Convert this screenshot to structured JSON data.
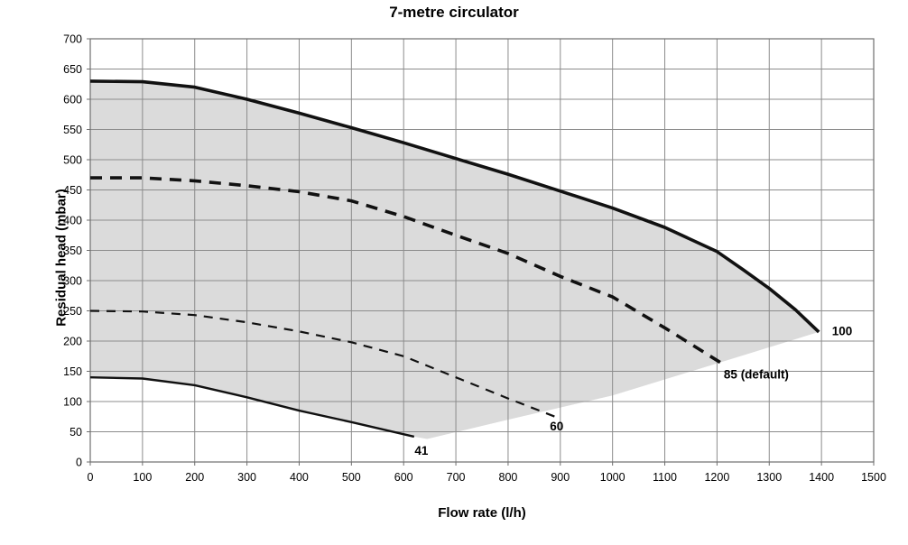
{
  "title": "7-metre circulator",
  "chart_data": {
    "type": "area",
    "title": "7-metre circulator",
    "xlabel": "Flow rate (l/h)",
    "ylabel": "Residual head (mbar)",
    "xlim": [
      0,
      1500
    ],
    "ylim": [
      0,
      700
    ],
    "x_ticks": [
      0,
      100,
      200,
      300,
      400,
      500,
      600,
      700,
      800,
      900,
      1000,
      1100,
      1200,
      1300,
      1400,
      1500
    ],
    "y_ticks": [
      0,
      50,
      100,
      150,
      200,
      250,
      300,
      350,
      400,
      450,
      500,
      550,
      600,
      650,
      700
    ],
    "grid": true,
    "legend": "none",
    "colors": {
      "region_fill": "#dbdbdb",
      "grid": "#8c8c8c",
      "plot_border": "#6e6e6e",
      "curve": "#111111",
      "text": "#000000"
    },
    "region": {
      "name": "operating-envelope",
      "points": [
        [
          0,
          630
        ],
        [
          100,
          629
        ],
        [
          200,
          620
        ],
        [
          300,
          600
        ],
        [
          400,
          577
        ],
        [
          500,
          553
        ],
        [
          600,
          528
        ],
        [
          700,
          502
        ],
        [
          800,
          476
        ],
        [
          900,
          448
        ],
        [
          1000,
          420
        ],
        [
          1100,
          388
        ],
        [
          1200,
          348
        ],
        [
          1300,
          287
        ],
        [
          1395,
          215
        ],
        [
          1200,
          163
        ],
        [
          1000,
          110
        ],
        [
          800,
          70
        ],
        [
          645,
          38
        ],
        [
          620,
          42
        ],
        [
          500,
          66
        ],
        [
          400,
          85
        ],
        [
          300,
          107
        ],
        [
          200,
          127
        ],
        [
          100,
          138
        ],
        [
          0,
          140
        ]
      ]
    },
    "series": [
      {
        "name": "speed-100",
        "label": "100",
        "style": "solid-thick",
        "points": [
          [
            0,
            630
          ],
          [
            100,
            629
          ],
          [
            200,
            620
          ],
          [
            300,
            600
          ],
          [
            400,
            577
          ],
          [
            500,
            553
          ],
          [
            600,
            528
          ],
          [
            700,
            502
          ],
          [
            800,
            476
          ],
          [
            900,
            448
          ],
          [
            1000,
            420
          ],
          [
            1100,
            388
          ],
          [
            1200,
            348
          ],
          [
            1250,
            318
          ],
          [
            1300,
            287
          ],
          [
            1350,
            252
          ],
          [
            1395,
            215
          ]
        ]
      },
      {
        "name": "speed-85",
        "label": "85 (default)",
        "style": "dashed-thick",
        "points": [
          [
            0,
            470
          ],
          [
            100,
            470
          ],
          [
            200,
            465
          ],
          [
            300,
            457
          ],
          [
            400,
            447
          ],
          [
            500,
            432
          ],
          [
            600,
            406
          ],
          [
            700,
            375
          ],
          [
            800,
            345
          ],
          [
            900,
            307
          ],
          [
            1000,
            273
          ],
          [
            1100,
            222
          ],
          [
            1215,
            160
          ]
        ]
      },
      {
        "name": "speed-60",
        "label": "60",
        "style": "dashed-thin",
        "points": [
          [
            0,
            250
          ],
          [
            100,
            249
          ],
          [
            200,
            243
          ],
          [
            300,
            231
          ],
          [
            400,
            216
          ],
          [
            500,
            198
          ],
          [
            600,
            175
          ],
          [
            700,
            140
          ],
          [
            800,
            105
          ],
          [
            890,
            75
          ]
        ]
      },
      {
        "name": "speed-41",
        "label": "41",
        "style": "solid-thin",
        "points": [
          [
            0,
            140
          ],
          [
            100,
            138
          ],
          [
            200,
            127
          ],
          [
            300,
            107
          ],
          [
            400,
            85
          ],
          [
            500,
            66
          ],
          [
            620,
            42
          ]
        ]
      }
    ],
    "curve_labels": [
      {
        "text": "100",
        "x": 1420,
        "y": 210,
        "anchor": "start"
      },
      {
        "text": "85 (default)",
        "x": 1213,
        "y": 138,
        "anchor": "start"
      },
      {
        "text": "60",
        "x": 893,
        "y": 52,
        "anchor": "middle"
      },
      {
        "text": "41",
        "x": 634,
        "y": 12,
        "anchor": "middle"
      }
    ]
  }
}
